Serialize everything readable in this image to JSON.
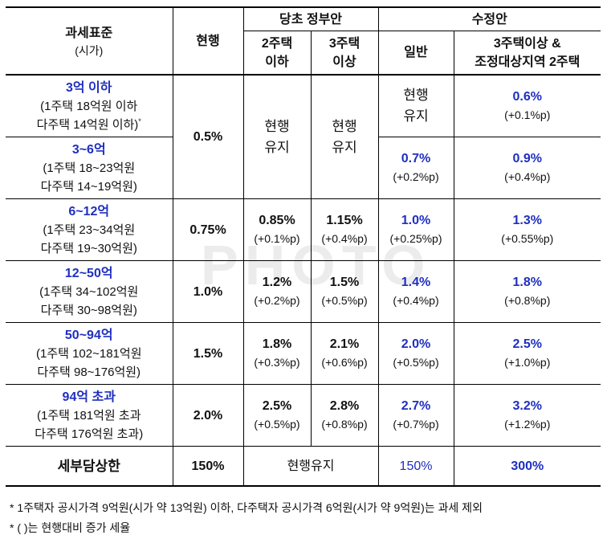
{
  "header": {
    "base": "과세표준",
    "base_sub": "(시가)",
    "current": "현행",
    "gov_plan": "당초 정부안",
    "gov_2house": "2주택\n이하",
    "gov_3house": "3주택\n이상",
    "revised": "수정안",
    "revised_general": "일반",
    "revised_multi": "3주택이상 &\n조정대상지역 2주택"
  },
  "rows": [
    {
      "base_title": "3억 이하",
      "base_line1": "(1주택 18억원 이하",
      "base_line2": "다주택 14억원 이하)",
      "revised_general": "현행\n유지",
      "revised_multi_pct": "0.6%",
      "revised_multi_delta": "(+0.1%p)"
    },
    {
      "base_title": "3~6억",
      "base_line1": "(1주택 18~23억원",
      "base_line2": "다주택 14~19억원)",
      "revised_general_pct": "0.7%",
      "revised_general_delta": "(+0.2%p)",
      "revised_multi_pct": "0.9%",
      "revised_multi_delta": "(+0.4%p)"
    },
    {
      "base_title": "6~12억",
      "base_line1": "(1주택 23~34억원",
      "base_line2": "다주택 19~30억원)",
      "current": "0.75%",
      "gov2_pct": "0.85%",
      "gov2_delta": "(+0.1%p)",
      "gov3_pct": "1.15%",
      "gov3_delta": "(+0.4%p)",
      "revised_general_pct": "1.0%",
      "revised_general_delta": "(+0.25%p)",
      "revised_multi_pct": "1.3%",
      "revised_multi_delta": "(+0.55%p)"
    },
    {
      "base_title": "12~50억",
      "base_line1": "(1주택 34~102억원",
      "base_line2": "다주택 30~98억원)",
      "current": "1.0%",
      "gov2_pct": "1.2%",
      "gov2_delta": "(+0.2%p)",
      "gov3_pct": "1.5%",
      "gov3_delta": "(+0.5%p)",
      "revised_general_pct": "1.4%",
      "revised_general_delta": "(+0.4%p)",
      "revised_multi_pct": "1.8%",
      "revised_multi_delta": "(+0.8%p)"
    },
    {
      "base_title": "50~94억",
      "base_line1": "(1주택 102~181억원",
      "base_line2": "다주택 98~176억원)",
      "current": "1.5%",
      "gov2_pct": "1.8%",
      "gov2_delta": "(+0.3%p)",
      "gov3_pct": "2.1%",
      "gov3_delta": "(+0.6%p)",
      "revised_general_pct": "2.0%",
      "revised_general_delta": "(+0.5%p)",
      "revised_multi_pct": "2.5%",
      "revised_multi_delta": "(+1.0%p)"
    },
    {
      "base_title": "94억 초과",
      "base_line1": "(1주택 181억원 초과",
      "base_line2": "다주택 176억원 초과)",
      "current": "2.0%",
      "gov2_pct": "2.5%",
      "gov2_delta": "(+0.5%p)",
      "gov3_pct": "2.8%",
      "gov3_delta": "(+0.8%p)",
      "revised_general_pct": "2.7%",
      "revised_general_delta": "(+0.7%p)",
      "revised_multi_pct": "3.2%",
      "revised_multi_delta": "(+1.2%p)"
    }
  ],
  "merged": {
    "current_top": "0.5%",
    "gov2_top": "현행\n유지",
    "gov3_top": "현행\n유지"
  },
  "cap_row": {
    "label": "세부담상한",
    "current": "150%",
    "gov": "현행유지",
    "revised_general": "150%",
    "revised_multi": "300%"
  },
  "notes": {
    "note1": "* 1주택자 공시가격 9억원(시가 약 13억원) 이하, 다주택자 공시가격 6억원(시가 약 9억원)는 과세 제외",
    "note2": "* ( )는 현행대비 증가 세율"
  },
  "footnote_mark": "*",
  "watermark": "PHOTO",
  "colors": {
    "accent_blue": "#1f2fbf",
    "text": "#111111",
    "border": "#000000"
  }
}
